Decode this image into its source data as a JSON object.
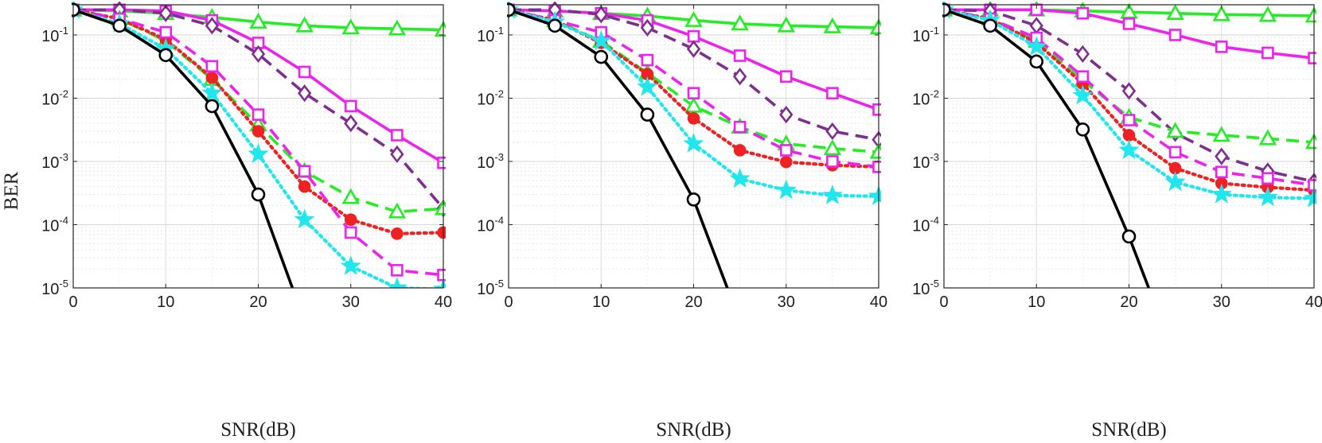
{
  "figure": {
    "ylabel": "BER"
  },
  "chart_data": [
    {
      "type": "line",
      "xlabel": "SNR(dB)",
      "ylabel": "BER",
      "yscale": "log",
      "xlim": [
        0,
        40
      ],
      "ylim": [
        1e-05,
        0.3
      ],
      "grid": true,
      "x_ticks": [
        "0",
        "10",
        "20",
        "30",
        "40"
      ],
      "y_ticks": [
        {
          "base": "10",
          "exp": "-5"
        },
        {
          "base": "10",
          "exp": "-4"
        },
        {
          "base": "10",
          "exp": "-3"
        },
        {
          "base": "10",
          "exp": "-2"
        },
        {
          "base": "10",
          "exp": "-1"
        }
      ],
      "series": [
        {
          "name": "green-triangle-solid",
          "color": "#22ee22",
          "dash": "solid",
          "marker": "triangle",
          "filled": false,
          "x": [
            0,
            5,
            10,
            15,
            20,
            25,
            30,
            35,
            40
          ],
          "y": [
            0.25,
            0.24,
            0.22,
            0.19,
            0.16,
            0.14,
            0.13,
            0.125,
            0.12
          ]
        },
        {
          "name": "magenta-square-solid",
          "color": "#ee22ee",
          "dash": "solid",
          "marker": "square",
          "filled": false,
          "x": [
            0,
            5,
            10,
            15,
            20,
            25,
            30,
            35,
            40
          ],
          "y": [
            0.25,
            0.25,
            0.24,
            0.17,
            0.075,
            0.026,
            0.0075,
            0.0026,
            0.00095
          ]
        },
        {
          "name": "purple-diamond-dashed",
          "color": "#7e2f8e",
          "dash": "dashed",
          "marker": "diamond",
          "filled": false,
          "x": [
            0,
            5,
            10,
            15,
            20,
            25,
            30,
            35,
            40
          ],
          "y": [
            0.25,
            0.25,
            0.22,
            0.14,
            0.05,
            0.012,
            0.004,
            0.0013,
            0.00018
          ]
        },
        {
          "name": "green-triangle-dashed",
          "color": "#22ee22",
          "dash": "dashed",
          "marker": "triangle",
          "filled": false,
          "x": [
            0,
            5,
            10,
            15,
            20,
            25,
            30,
            35,
            40
          ],
          "y": [
            0.25,
            0.18,
            0.08,
            0.02,
            0.0038,
            0.0007,
            0.00027,
            0.00016,
            0.00018
          ]
        },
        {
          "name": "red-circle-dotted",
          "color": "#ee2222",
          "dash": "dotted",
          "marker": "circle",
          "filled": true,
          "x": [
            0,
            5,
            10,
            15,
            20,
            25,
            30,
            35,
            40
          ],
          "y": [
            0.25,
            0.18,
            0.085,
            0.021,
            0.003,
            0.0004,
            0.00012,
            7.2e-05,
            7.5e-05
          ]
        },
        {
          "name": "magenta-square-dashed",
          "color": "#ee22ee",
          "dash": "dashed",
          "marker": "square",
          "filled": false,
          "x": [
            0,
            5,
            10,
            15,
            20,
            25,
            30,
            35,
            40
          ],
          "y": [
            0.25,
            0.18,
            0.11,
            0.032,
            0.0055,
            0.0007,
            7.5e-05,
            1.9e-05,
            1.6e-05
          ]
        },
        {
          "name": "cyan-star-dotted",
          "color": "#22e6ee",
          "dash": "dotted",
          "marker": "star",
          "filled": true,
          "x": [
            0,
            5,
            10,
            15,
            20,
            25,
            30,
            35,
            40
          ],
          "y": [
            0.25,
            0.15,
            0.06,
            0.012,
            0.0013,
            0.00012,
            2.2e-05,
            1e-05,
            9.5e-06
          ]
        },
        {
          "name": "black-circle-solid",
          "color": "#000000",
          "dash": "solid",
          "marker": "circle",
          "filled": false,
          "x": [
            0,
            5,
            10,
            15,
            20,
            25
          ],
          "y": [
            0.25,
            0.14,
            0.048,
            0.0075,
            0.0003,
            3e-06
          ],
          "marker_count": 5
        }
      ]
    },
    {
      "type": "line",
      "xlabel": "SNR(dB)",
      "ylabel": "BER",
      "yscale": "log",
      "xlim": [
        0,
        40
      ],
      "ylim": [
        1e-05,
        0.3
      ],
      "grid": true,
      "x_ticks": [
        "0",
        "10",
        "20",
        "30",
        "40"
      ],
      "y_ticks": [
        {
          "base": "10",
          "exp": "-5"
        },
        {
          "base": "10",
          "exp": "-4"
        },
        {
          "base": "10",
          "exp": "-3"
        },
        {
          "base": "10",
          "exp": "-2"
        },
        {
          "base": "10",
          "exp": "-1"
        }
      ],
      "series": [
        {
          "name": "green-triangle-solid",
          "color": "#22ee22",
          "dash": "solid",
          "marker": "triangle",
          "filled": false,
          "x": [
            0,
            5,
            10,
            15,
            20,
            25,
            30,
            35,
            40
          ],
          "y": [
            0.25,
            0.24,
            0.22,
            0.2,
            0.17,
            0.15,
            0.14,
            0.135,
            0.13
          ]
        },
        {
          "name": "magenta-square-solid",
          "color": "#ee22ee",
          "dash": "solid",
          "marker": "square",
          "filled": false,
          "x": [
            0,
            5,
            10,
            15,
            20,
            25,
            30,
            35,
            40
          ],
          "y": [
            0.25,
            0.24,
            0.22,
            0.17,
            0.095,
            0.047,
            0.022,
            0.012,
            0.0066
          ]
        },
        {
          "name": "purple-diamond-dashed",
          "color": "#7e2f8e",
          "dash": "dashed",
          "marker": "diamond",
          "filled": false,
          "x": [
            0,
            5,
            10,
            15,
            20,
            25,
            30,
            35,
            40
          ],
          "y": [
            0.25,
            0.25,
            0.21,
            0.13,
            0.06,
            0.022,
            0.0055,
            0.003,
            0.0022
          ]
        },
        {
          "name": "green-triangle-dashed",
          "color": "#22ee22",
          "dash": "dashed",
          "marker": "triangle",
          "filled": false,
          "x": [
            0,
            5,
            10,
            15,
            20,
            25,
            30,
            35,
            40
          ],
          "y": [
            0.25,
            0.17,
            0.08,
            0.025,
            0.0075,
            0.0035,
            0.0019,
            0.0016,
            0.0014
          ]
        },
        {
          "name": "red-circle-dotted",
          "color": "#ee2222",
          "dash": "dotted",
          "marker": "circle",
          "filled": true,
          "x": [
            0,
            5,
            10,
            15,
            20,
            25,
            30,
            35,
            40
          ],
          "y": [
            0.25,
            0.17,
            0.075,
            0.024,
            0.0048,
            0.0015,
            0.00098,
            0.00087,
            0.00082
          ]
        },
        {
          "name": "magenta-square-dashed",
          "color": "#ee22ee",
          "dash": "dashed",
          "marker": "square",
          "filled": false,
          "x": [
            0,
            5,
            10,
            15,
            20,
            25,
            30,
            35,
            40
          ],
          "y": [
            0.25,
            0.17,
            0.11,
            0.04,
            0.012,
            0.0035,
            0.0015,
            0.001,
            0.00082
          ]
        },
        {
          "name": "cyan-star-dotted",
          "color": "#22e6ee",
          "dash": "dotted",
          "marker": "star",
          "filled": true,
          "x": [
            0,
            5,
            10,
            15,
            20,
            25,
            30,
            35,
            40
          ],
          "y": [
            0.25,
            0.16,
            0.08,
            0.015,
            0.0019,
            0.00053,
            0.00035,
            0.00029,
            0.00028
          ]
        },
        {
          "name": "black-circle-solid",
          "color": "#000000",
          "dash": "solid",
          "marker": "circle",
          "filled": false,
          "x": [
            0,
            5,
            10,
            15,
            20,
            25
          ],
          "y": [
            0.25,
            0.14,
            0.045,
            0.0055,
            0.00025,
            3e-06
          ],
          "marker_count": 5
        }
      ]
    },
    {
      "type": "line",
      "xlabel": "SNR(dB)",
      "ylabel": "BER",
      "yscale": "log",
      "xlim": [
        0,
        40
      ],
      "ylim": [
        1e-05,
        0.3
      ],
      "grid": true,
      "x_ticks": [
        "0",
        "10",
        "20",
        "30",
        "40"
      ],
      "y_ticks": [
        {
          "base": "10",
          "exp": "-5"
        },
        {
          "base": "10",
          "exp": "-4"
        },
        {
          "base": "10",
          "exp": "-3"
        },
        {
          "base": "10",
          "exp": "-2"
        },
        {
          "base": "10",
          "exp": "-1"
        }
      ],
      "series": [
        {
          "name": "green-triangle-solid",
          "color": "#22ee22",
          "dash": "solid",
          "marker": "triangle",
          "filled": false,
          "x": [
            0,
            5,
            10,
            15,
            20,
            25,
            30,
            35,
            40
          ],
          "y": [
            0.25,
            0.25,
            0.25,
            0.24,
            0.23,
            0.22,
            0.21,
            0.205,
            0.2
          ]
        },
        {
          "name": "magenta-square-solid",
          "color": "#ee22ee",
          "dash": "solid",
          "marker": "square",
          "filled": false,
          "x": [
            0,
            5,
            10,
            15,
            20,
            25,
            30,
            35,
            40
          ],
          "y": [
            0.25,
            0.25,
            0.25,
            0.22,
            0.15,
            0.1,
            0.065,
            0.052,
            0.043
          ]
        },
        {
          "name": "purple-diamond-dashed",
          "color": "#7e2f8e",
          "dash": "dashed",
          "marker": "diamond",
          "filled": false,
          "x": [
            0,
            5,
            10,
            15,
            20,
            25,
            30,
            35,
            40
          ],
          "y": [
            0.25,
            0.24,
            0.14,
            0.05,
            0.013,
            0.0028,
            0.0012,
            0.0007,
            0.00048
          ]
        },
        {
          "name": "green-triangle-dashed",
          "color": "#22ee22",
          "dash": "dashed",
          "marker": "triangle",
          "filled": false,
          "x": [
            0,
            5,
            10,
            15,
            20,
            25,
            30,
            35,
            40
          ],
          "y": [
            0.25,
            0.18,
            0.08,
            0.019,
            0.005,
            0.003,
            0.0026,
            0.0023,
            0.002
          ]
        },
        {
          "name": "red-circle-dotted",
          "color": "#ee2222",
          "dash": "dotted",
          "marker": "circle",
          "filled": true,
          "x": [
            0,
            5,
            10,
            15,
            20,
            25,
            30,
            35,
            40
          ],
          "y": [
            0.25,
            0.18,
            0.075,
            0.017,
            0.0026,
            0.00078,
            0.00045,
            0.00039,
            0.00035
          ]
        },
        {
          "name": "magenta-square-dashed",
          "color": "#ee22ee",
          "dash": "dashed",
          "marker": "square",
          "filled": false,
          "x": [
            0,
            5,
            10,
            15,
            20,
            25,
            30,
            35,
            40
          ],
          "y": [
            0.25,
            0.18,
            0.09,
            0.022,
            0.0045,
            0.0014,
            0.00068,
            0.00054,
            0.00042
          ]
        },
        {
          "name": "cyan-star-dotted",
          "color": "#22e6ee",
          "dash": "dotted",
          "marker": "star",
          "filled": true,
          "x": [
            0,
            5,
            10,
            15,
            20,
            25,
            30,
            35,
            40
          ],
          "y": [
            0.25,
            0.17,
            0.065,
            0.011,
            0.0015,
            0.00047,
            0.0003,
            0.00027,
            0.00026
          ]
        },
        {
          "name": "black-circle-solid",
          "color": "#000000",
          "dash": "solid",
          "marker": "circle",
          "filled": false,
          "x": [
            0,
            5,
            10,
            15,
            20,
            23.5
          ],
          "y": [
            0.25,
            0.14,
            0.038,
            0.0032,
            6.5e-05,
            3e-06
          ],
          "marker_count": 5
        }
      ]
    }
  ]
}
